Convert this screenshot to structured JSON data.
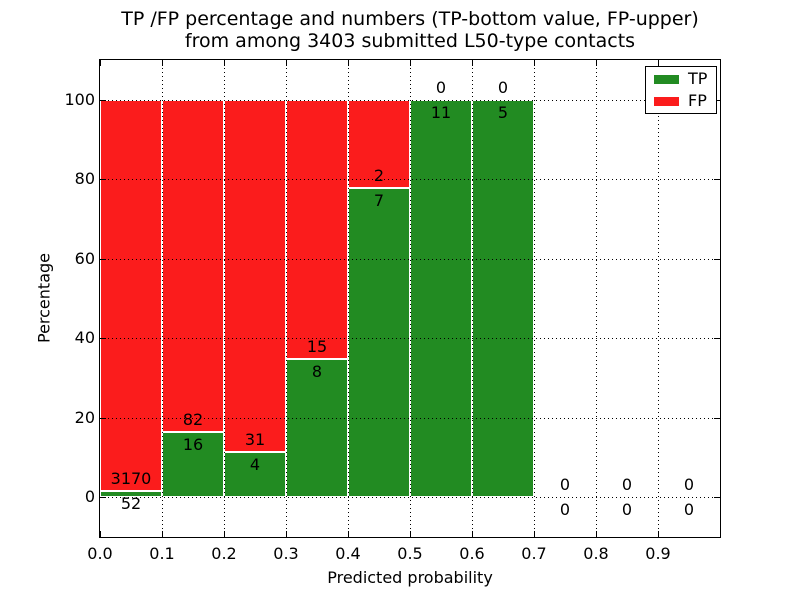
{
  "title": {
    "line1": "TP /FP percentage and numbers (TP-bottom value, FP-upper)",
    "line2": "from among 3403 submitted L50-type contacts"
  },
  "axes": {
    "xlabel": "Predicted probability",
    "ylabel": "Percentage"
  },
  "legend": {
    "position": "upper right",
    "entries": [
      {
        "label": "TP",
        "color": "#228b22"
      },
      {
        "label": "FP",
        "color": "#fb1c1c"
      }
    ]
  },
  "colors": {
    "tp": "#228b22",
    "fp": "#fb1c1c",
    "grid": "#000000",
    "background": "#ffffff",
    "bar_edge": "#ffffff"
  },
  "chart_data": {
    "type": "bar",
    "stacked": true,
    "title": "TP /FP percentage and numbers (TP-bottom value, FP-upper)\nfrom among 3403 submitted L50-type contacts",
    "xlabel": "Predicted probability",
    "ylabel": "Percentage",
    "total_submitted": 3403,
    "grid": "dotted",
    "legend_position": "upper right",
    "xlim": [
      0.0,
      1.0
    ],
    "ylim": [
      -11,
      110
    ],
    "x_ticks": [
      "0.0",
      "0.1",
      "0.2",
      "0.3",
      "0.4",
      "0.5",
      "0.6",
      "0.7",
      "0.8",
      "0.9"
    ],
    "y_ticks": [
      0,
      20,
      40,
      60,
      80,
      100
    ],
    "categories": [
      "0.0-0.1",
      "0.1-0.2",
      "0.2-0.3",
      "0.3-0.4",
      "0.4-0.5",
      "0.5-0.6",
      "0.6-0.7",
      "0.7-0.8",
      "0.8-0.9",
      "0.9-1.0"
    ],
    "series": [
      {
        "name": "TP",
        "color": "#228b22",
        "counts": [
          52,
          16,
          4,
          8,
          7,
          11,
          5,
          0,
          0,
          0
        ]
      },
      {
        "name": "FP",
        "color": "#fb1c1c",
        "counts": [
          3170,
          82,
          31,
          15,
          2,
          0,
          0,
          0,
          0,
          0
        ]
      }
    ],
    "tp_percent": [
      1.61,
      16.33,
      11.43,
      34.78,
      77.78,
      100.0,
      100.0,
      null,
      null,
      null
    ]
  }
}
